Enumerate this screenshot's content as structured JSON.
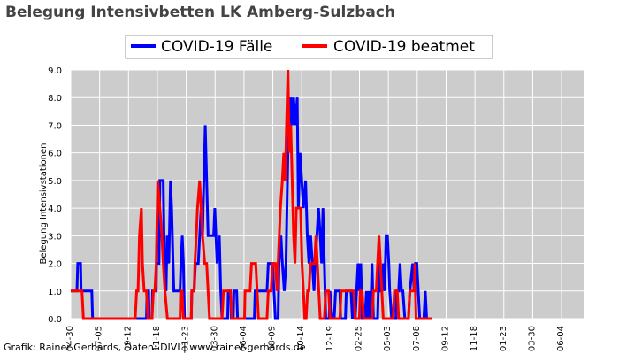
{
  "chart_data": {
    "type": "line",
    "title": "Belegung Intensivbetten LK Amberg-Sulzbach",
    "xlabel": "",
    "ylabel": "Belegung Intensivstationen",
    "ylim": [
      0,
      9
    ],
    "yticks": [
      "0.0",
      "1.0",
      "2.0",
      "3.0",
      "4.0",
      "5.0",
      "6.0",
      "7.0",
      "8.0",
      "9.0"
    ],
    "xticks": [
      "04-30",
      "07-05",
      "09-12",
      "11-18",
      "01-23",
      "03-30",
      "06-04",
      "08-09",
      "10-14",
      "12-19",
      "02-25",
      "05-03",
      "07-08",
      "09-12",
      "11-18",
      "01-23",
      "03-30",
      "06-04"
    ],
    "x_range_index": [
      0,
      1830
    ],
    "grid": true,
    "legend_position": "top-center",
    "series": [
      {
        "name": "COVID-19 Fälle",
        "color": "#0000ff",
        "points": [
          [
            0,
            1
          ],
          [
            22,
            1
          ],
          [
            25,
            2
          ],
          [
            35,
            2
          ],
          [
            37,
            1
          ],
          [
            75,
            1
          ],
          [
            78,
            0
          ],
          [
            270,
            0
          ],
          [
            272,
            1
          ],
          [
            278,
            1
          ],
          [
            280,
            0
          ],
          [
            290,
            0
          ],
          [
            292,
            1
          ],
          [
            305,
            1
          ],
          [
            306,
            2
          ],
          [
            315,
            2
          ],
          [
            318,
            5
          ],
          [
            330,
            5
          ],
          [
            334,
            2
          ],
          [
            340,
            1
          ],
          [
            344,
            3
          ],
          [
            350,
            2
          ],
          [
            356,
            5
          ],
          [
            360,
            4
          ],
          [
            365,
            2
          ],
          [
            368,
            1
          ],
          [
            372,
            1
          ],
          [
            380,
            1
          ],
          [
            390,
            1
          ],
          [
            393,
            2
          ],
          [
            398,
            3
          ],
          [
            402,
            2
          ],
          [
            406,
            0
          ],
          [
            430,
            0
          ],
          [
            432,
            1
          ],
          [
            440,
            1
          ],
          [
            445,
            2
          ],
          [
            455,
            2
          ],
          [
            460,
            3
          ],
          [
            465,
            4
          ],
          [
            470,
            3
          ],
          [
            475,
            5
          ],
          [
            480,
            7
          ],
          [
            485,
            5
          ],
          [
            490,
            3
          ],
          [
            500,
            3
          ],
          [
            510,
            3
          ],
          [
            514,
            4
          ],
          [
            518,
            3
          ],
          [
            522,
            2
          ],
          [
            530,
            3
          ],
          [
            535,
            1
          ],
          [
            540,
            0
          ],
          [
            560,
            0
          ],
          [
            562,
            1
          ],
          [
            570,
            1
          ],
          [
            573,
            0
          ],
          [
            580,
            0
          ],
          [
            582,
            1
          ],
          [
            588,
            1
          ],
          [
            592,
            1
          ],
          [
            595,
            0
          ],
          [
            655,
            0
          ],
          [
            658,
            1
          ],
          [
            700,
            1
          ],
          [
            705,
            2
          ],
          [
            720,
            2
          ],
          [
            725,
            1
          ],
          [
            730,
            0
          ],
          [
            740,
            0
          ],
          [
            743,
            2
          ],
          [
            750,
            3
          ],
          [
            755,
            2
          ],
          [
            762,
            1
          ],
          [
            768,
            2
          ],
          [
            775,
            6
          ],
          [
            785,
            8
          ],
          [
            790,
            7
          ],
          [
            795,
            8
          ],
          [
            802,
            7
          ],
          [
            808,
            8
          ],
          [
            812,
            4
          ],
          [
            818,
            6
          ],
          [
            824,
            5
          ],
          [
            830,
            4
          ],
          [
            838,
            5
          ],
          [
            844,
            3
          ],
          [
            850,
            2
          ],
          [
            856,
            3
          ],
          [
            862,
            2
          ],
          [
            868,
            1
          ],
          [
            872,
            2
          ],
          [
            878,
            3
          ],
          [
            884,
            4
          ],
          [
            890,
            3
          ],
          [
            895,
            2
          ],
          [
            900,
            4
          ],
          [
            905,
            2
          ],
          [
            910,
            0
          ],
          [
            922,
            0
          ],
          [
            925,
            1
          ],
          [
            932,
            0
          ],
          [
            940,
            0
          ],
          [
            945,
            1
          ],
          [
            955,
            1
          ],
          [
            960,
            1
          ],
          [
            963,
            0
          ],
          [
            980,
            0
          ],
          [
            983,
            1
          ],
          [
            990,
            1
          ],
          [
            1000,
            1
          ],
          [
            1005,
            0
          ],
          [
            1010,
            1
          ],
          [
            1015,
            0
          ],
          [
            1020,
            1
          ],
          [
            1025,
            2
          ],
          [
            1030,
            1
          ],
          [
            1035,
            2
          ],
          [
            1040,
            0
          ],
          [
            1050,
            0
          ],
          [
            1055,
            1
          ],
          [
            1060,
            0
          ],
          [
            1065,
            1
          ],
          [
            1070,
            0
          ],
          [
            1075,
            2
          ],
          [
            1080,
            0
          ],
          [
            1095,
            0
          ],
          [
            1100,
            2
          ],
          [
            1105,
            1
          ],
          [
            1110,
            1
          ],
          [
            1115,
            2
          ],
          [
            1120,
            1
          ],
          [
            1125,
            3
          ],
          [
            1130,
            3
          ],
          [
            1135,
            2
          ],
          [
            1138,
            1
          ],
          [
            1145,
            0
          ],
          [
            1160,
            0
          ],
          [
            1163,
            1
          ],
          [
            1170,
            1
          ],
          [
            1175,
            2
          ],
          [
            1180,
            1
          ],
          [
            1185,
            1
          ],
          [
            1192,
            0
          ],
          [
            1205,
            0
          ],
          [
            1210,
            1
          ],
          [
            1220,
            2
          ],
          [
            1225,
            1
          ],
          [
            1230,
            2
          ],
          [
            1235,
            2
          ],
          [
            1240,
            1
          ],
          [
            1245,
            0
          ],
          [
            1260,
            0
          ],
          [
            1265,
            1
          ],
          [
            1270,
            0
          ],
          [
            1290,
            0
          ]
        ]
      },
      {
        "name": "COVID-19 beatmet",
        "color": "#ff0000",
        "points": [
          [
            0,
            1
          ],
          [
            40,
            1
          ],
          [
            45,
            0
          ],
          [
            230,
            0
          ],
          [
            235,
            1
          ],
          [
            240,
            1
          ],
          [
            245,
            3
          ],
          [
            252,
            4
          ],
          [
            256,
            2
          ],
          [
            262,
            1
          ],
          [
            270,
            1
          ],
          [
            275,
            0
          ],
          [
            290,
            0
          ],
          [
            295,
            1
          ],
          [
            300,
            1
          ],
          [
            305,
            2
          ],
          [
            310,
            5
          ],
          [
            318,
            4
          ],
          [
            325,
            3
          ],
          [
            330,
            2
          ],
          [
            336,
            1
          ],
          [
            345,
            0
          ],
          [
            390,
            0
          ],
          [
            392,
            1
          ],
          [
            397,
            1
          ],
          [
            402,
            0
          ],
          [
            430,
            0
          ],
          [
            432,
            1
          ],
          [
            440,
            1
          ],
          [
            443,
            2
          ],
          [
            448,
            3
          ],
          [
            452,
            4
          ],
          [
            460,
            5
          ],
          [
            465,
            4
          ],
          [
            470,
            3
          ],
          [
            478,
            2
          ],
          [
            485,
            2
          ],
          [
            490,
            1
          ],
          [
            495,
            0
          ],
          [
            540,
            0
          ],
          [
            545,
            1
          ],
          [
            570,
            1
          ],
          [
            575,
            0
          ],
          [
            620,
            0
          ],
          [
            622,
            1
          ],
          [
            640,
            1
          ],
          [
            645,
            2
          ],
          [
            660,
            2
          ],
          [
            665,
            1
          ],
          [
            670,
            0
          ],
          [
            700,
            0
          ],
          [
            705,
            1
          ],
          [
            715,
            1
          ],
          [
            720,
            2
          ],
          [
            730,
            2
          ],
          [
            736,
            1
          ],
          [
            740,
            2
          ],
          [
            748,
            4
          ],
          [
            755,
            5
          ],
          [
            760,
            6
          ],
          [
            765,
            5
          ],
          [
            770,
            7
          ],
          [
            775,
            9
          ],
          [
            780,
            6
          ],
          [
            785,
            7
          ],
          [
            790,
            5
          ],
          [
            795,
            3
          ],
          [
            800,
            2
          ],
          [
            805,
            4
          ],
          [
            820,
            4
          ],
          [
            825,
            2
          ],
          [
            830,
            1
          ],
          [
            835,
            0
          ],
          [
            840,
            0
          ],
          [
            845,
            1
          ],
          [
            850,
            1
          ],
          [
            855,
            2
          ],
          [
            860,
            2
          ],
          [
            870,
            2
          ],
          [
            875,
            3
          ],
          [
            880,
            2
          ],
          [
            885,
            1
          ],
          [
            890,
            0
          ],
          [
            905,
            0
          ],
          [
            910,
            1
          ],
          [
            920,
            1
          ],
          [
            925,
            0
          ],
          [
            960,
            0
          ],
          [
            965,
            1
          ],
          [
            1010,
            1
          ],
          [
            1015,
            0
          ],
          [
            1030,
            0
          ],
          [
            1033,
            1
          ],
          [
            1040,
            1
          ],
          [
            1045,
            0
          ],
          [
            1075,
            0
          ],
          [
            1080,
            1
          ],
          [
            1090,
            1
          ],
          [
            1095,
            2
          ],
          [
            1100,
            3
          ],
          [
            1105,
            2
          ],
          [
            1110,
            1
          ],
          [
            1115,
            0
          ],
          [
            1150,
            0
          ],
          [
            1155,
            1
          ],
          [
            1165,
            1
          ],
          [
            1170,
            0
          ],
          [
            1205,
            0
          ],
          [
            1210,
            1
          ],
          [
            1225,
            1
          ],
          [
            1228,
            2
          ],
          [
            1232,
            0
          ],
          [
            1290,
            0
          ]
        ]
      }
    ]
  },
  "credit": "Grafik: Rainer Gerhards, Daten: DIVI | www.rainer-gerhards.de"
}
